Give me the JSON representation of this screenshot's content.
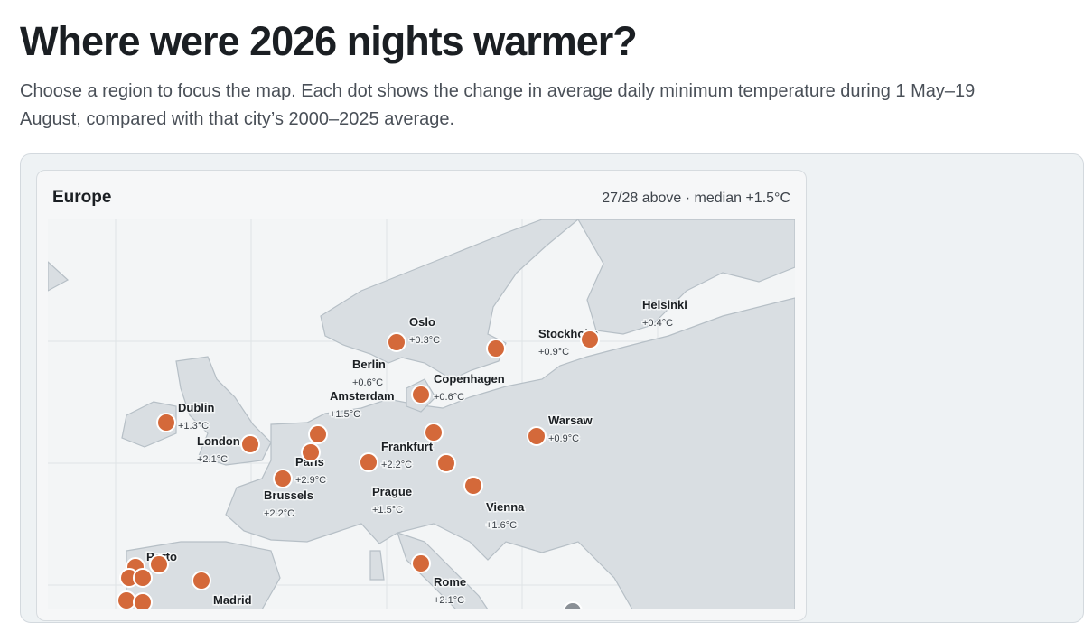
{
  "header": {
    "title": "Where were 2026 nights warmer?",
    "subtitle": "Choose a region to focus the map. Each dot shows the change in average daily minimum temperature during 1 May–19 August, compared with that city’s 2000–2025 average."
  },
  "panel": {
    "region": "Europe",
    "summary": "27/28 above · median +1.5°C"
  },
  "cities": [
    {
      "name": "Oslo",
      "change": "+0.3°C"
    },
    {
      "name": "Helsinki",
      "change": "+0.4°C"
    },
    {
      "name": "Stockholm",
      "change": "+0.9°C"
    },
    {
      "name": "Berlin",
      "change": "+0.6°C"
    },
    {
      "name": "Copenhagen",
      "change": "+0.6°C"
    },
    {
      "name": "Amsterdam",
      "change": "+1.5°C"
    },
    {
      "name": "Dublin",
      "change": "+1.3°C"
    },
    {
      "name": "London",
      "change": "+2.1°C"
    },
    {
      "name": "Paris",
      "change": "+2.9°C"
    },
    {
      "name": "Brussels",
      "change": "+2.2°C"
    },
    {
      "name": "Frankfurt",
      "change": "+2.2°C"
    },
    {
      "name": "Prague",
      "change": "+1.5°C"
    },
    {
      "name": "Warsaw",
      "change": "+0.9°C"
    },
    {
      "name": "Vienna",
      "change": "+1.6°C"
    },
    {
      "name": "Rome",
      "change": "+2.1°C"
    },
    {
      "name": "Madrid"
    },
    {
      "name": "Porto"
    }
  ]
}
